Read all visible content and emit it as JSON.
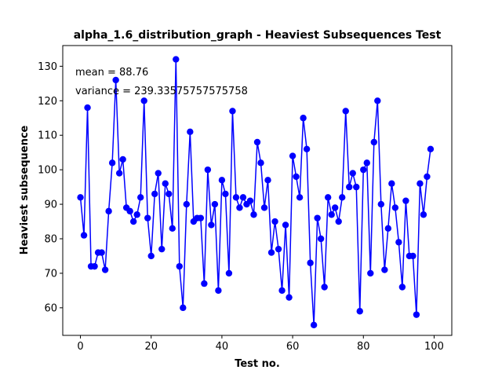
{
  "chart_data": {
    "type": "line",
    "title": "alpha_1.6_distribution_graph - Heaviest Subsequences Test",
    "xlabel": "Test no.",
    "ylabel": "Heaviest subsequence",
    "xlim": [
      -5,
      105
    ],
    "ylim": [
      52,
      136
    ],
    "xticks": [
      0,
      20,
      40,
      60,
      80,
      100
    ],
    "yticks": [
      60,
      70,
      80,
      90,
      100,
      110,
      120,
      130
    ],
    "grid": false,
    "annotations": [
      "mean = 88.76",
      "variance = 239.33575757575758"
    ],
    "color": "#0000ff",
    "marker": "circle",
    "x": [
      0,
      1,
      2,
      3,
      4,
      5,
      6,
      7,
      8,
      9,
      10,
      11,
      12,
      13,
      14,
      15,
      16,
      17,
      18,
      19,
      20,
      21,
      22,
      23,
      24,
      25,
      26,
      27,
      28,
      29,
      30,
      31,
      32,
      33,
      34,
      35,
      36,
      37,
      38,
      39,
      40,
      41,
      42,
      43,
      44,
      45,
      46,
      47,
      48,
      49,
      50,
      51,
      52,
      53,
      54,
      55,
      56,
      57,
      58,
      59,
      60,
      61,
      62,
      63,
      64,
      65,
      66,
      67,
      68,
      69,
      70,
      71,
      72,
      73,
      74,
      75,
      76,
      77,
      78,
      79,
      80,
      81,
      82,
      83,
      84,
      85,
      86,
      87,
      88,
      89,
      90,
      91,
      92,
      93,
      94,
      95,
      96,
      97,
      98,
      99
    ],
    "y": [
      92,
      81,
      118,
      72,
      72,
      76,
      76,
      71,
      88,
      102,
      126,
      99,
      103,
      89,
      88,
      85,
      87,
      92,
      120,
      86,
      75,
      93,
      99,
      77,
      96,
      93,
      83,
      132,
      72,
      60,
      90,
      111,
      85,
      86,
      86,
      67,
      100,
      84,
      90,
      65,
      97,
      93,
      70,
      117,
      92,
      89,
      92,
      90,
      91,
      87,
      108,
      102,
      89,
      97,
      76,
      85,
      77,
      65,
      84,
      63,
      104,
      98,
      92,
      115,
      106,
      73,
      55,
      86,
      80,
      66,
      92,
      87,
      89,
      85,
      92,
      117,
      95,
      99,
      95,
      59,
      100,
      102,
      70,
      108,
      120,
      90,
      71,
      83,
      96,
      89,
      79,
      66,
      91,
      75,
      75,
      58,
      96,
      87,
      98,
      106
    ]
  }
}
